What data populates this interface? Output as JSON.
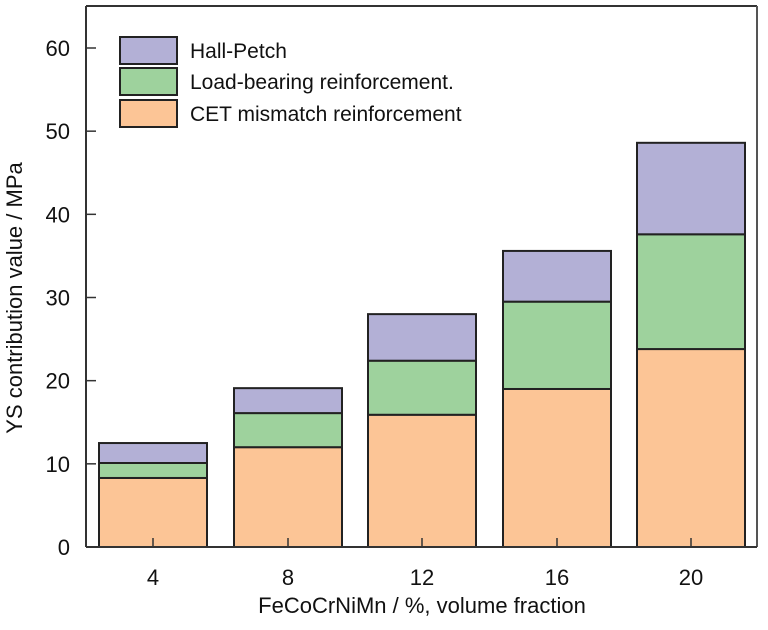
{
  "chart_data": {
    "type": "bar",
    "stacked": true,
    "title": "",
    "xlabel": "FeCoCrNiMn / %, volume fraction",
    "ylabel": "YS contribution value / MPa",
    "categories": [
      "4",
      "8",
      "12",
      "16",
      "20"
    ],
    "ylim": [
      0,
      65
    ],
    "yticks": [
      0,
      10,
      20,
      30,
      40,
      50,
      60
    ],
    "ytick_labels": [
      "0",
      "10",
      "20",
      "30",
      "40",
      "50",
      "60"
    ],
    "grid": false,
    "legend_position": "top-left",
    "series": [
      {
        "name": "CET mismatch reinforcement",
        "color": "#fcc596",
        "values": [
          8.3,
          12.0,
          15.9,
          19.0,
          23.8
        ]
      },
      {
        "name": "Load-bearing reinforcement.",
        "color": "#9ed29d",
        "values": [
          1.8,
          4.1,
          6.5,
          10.5,
          13.8
        ]
      },
      {
        "name": "Hall-Petch",
        "color": "#b3b0d6",
        "values": [
          2.4,
          3.0,
          5.6,
          6.1,
          11.0
        ]
      }
    ],
    "legend_order": [
      "Hall-Petch",
      "Load-bearing reinforcement.",
      "CET mismatch reinforcement"
    ]
  }
}
